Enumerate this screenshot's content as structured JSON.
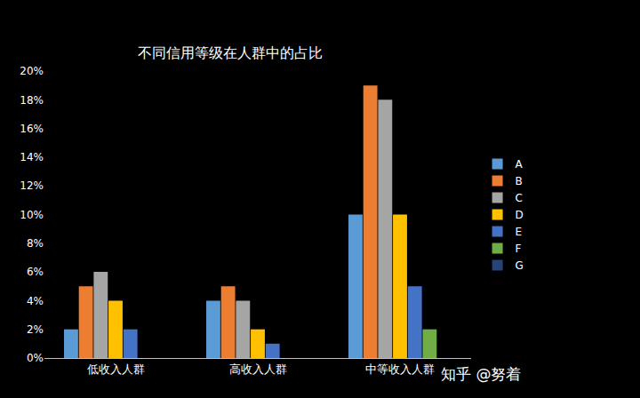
{
  "chart_data": {
    "type": "bar",
    "title": "不同信用等级在人群中的占比",
    "categories": [
      "低收入人群",
      "高收入人群",
      "中等收入人群"
    ],
    "series": [
      {
        "name": "A",
        "color": "#5b9bd5",
        "values": [
          2,
          4,
          10
        ]
      },
      {
        "name": "B",
        "color": "#ed7d31",
        "values": [
          5,
          5,
          19
        ]
      },
      {
        "name": "C",
        "color": "#a5a5a5",
        "values": [
          6,
          4,
          18
        ]
      },
      {
        "name": "D",
        "color": "#ffc000",
        "values": [
          4,
          2,
          10
        ]
      },
      {
        "name": "E",
        "color": "#4472c4",
        "values": [
          2,
          1,
          5
        ]
      },
      {
        "name": "F",
        "color": "#70ad47",
        "values": [
          null,
          null,
          2
        ]
      },
      {
        "name": "G",
        "color": "#264478",
        "values": [
          null,
          null,
          null
        ]
      }
    ],
    "ylim": [
      0,
      20
    ],
    "yticks": [
      {
        "value": 0,
        "label": "0%"
      },
      {
        "value": 2,
        "label": "2%"
      },
      {
        "value": 4,
        "label": "4%"
      },
      {
        "value": 6,
        "label": "6%"
      },
      {
        "value": 8,
        "label": "8%"
      },
      {
        "value": 10,
        "label": "10%"
      },
      {
        "value": 12,
        "label": "12%"
      },
      {
        "value": 14,
        "label": "14%"
      },
      {
        "value": 16,
        "label": "16%"
      },
      {
        "value": 18,
        "label": "18%"
      },
      {
        "value": 20,
        "label": "20%"
      }
    ],
    "grid": false,
    "legend": "right",
    "annotations": [
      "知乎 @努着"
    ]
  }
}
